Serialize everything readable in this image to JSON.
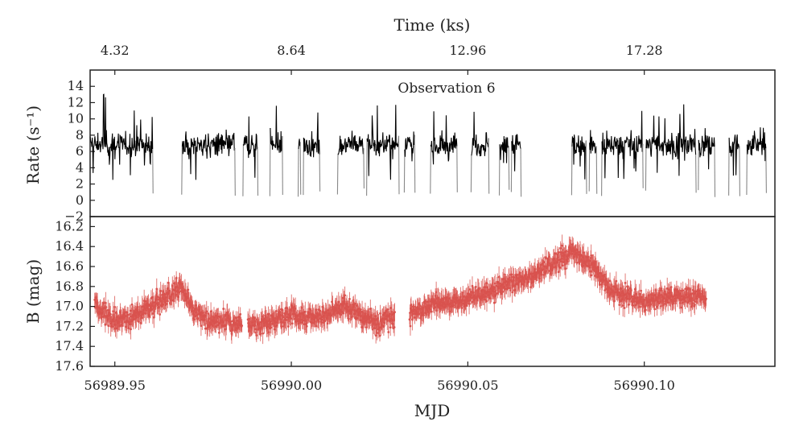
{
  "chart_data": [
    {
      "type": "line",
      "panel": "top",
      "title": "",
      "annotation": "Observation 6",
      "xlabel": "",
      "ylabel": "Rate (s⁻¹)",
      "top_axis_label": "Time (ks)",
      "top_ticks": [
        "4.32",
        "8.64",
        "12.96",
        "17.28"
      ],
      "top_tick_mjd": [
        56989.95,
        56990.0,
        56990.05,
        56990.1
      ],
      "xlim": [
        56989.943,
        56990.137
      ],
      "ylim": [
        -2,
        16
      ],
      "yticks": [
        "14",
        "12",
        "10",
        "8",
        "6",
        "4",
        "2",
        "0",
        "−2"
      ],
      "ytick_values": [
        14,
        12,
        10,
        8,
        6,
        4,
        2,
        0,
        -2
      ],
      "high_state_color": "#000000",
      "low_state_color": "#0000ee",
      "transition_color": "#888888",
      "threshold": 2.0,
      "high_level": 6.8,
      "low_level": 0.7,
      "low_segments": [
        [
          56989.9608,
          56989.969
        ],
        [
          56989.984,
          56989.986
        ],
        [
          56989.9905,
          56989.994
        ],
        [
          56989.9975,
          56990.002
        ],
        [
          56990.008,
          56990.0132
        ],
        [
          56990.0305,
          56990.032
        ],
        [
          56990.035,
          56990.0395
        ],
        [
          56990.047,
          56990.051
        ],
        [
          56990.056,
          56990.059
        ],
        [
          56990.065,
          56990.0795
        ],
        [
          56990.0865,
          56990.088
        ],
        [
          56990.12,
          56990.124
        ],
        [
          56990.127,
          56990.129
        ],
        [
          56990.1345,
          56990.137
        ]
      ],
      "dip_points": [
        56989.986,
        56990.003,
        56990.021,
        56990.062,
        56990.084,
        56990.1,
        56990.115
      ]
    },
    {
      "type": "scatter",
      "panel": "bottom",
      "with_error_bars": true,
      "xlabel": "MJD",
      "ylabel": "B (mag)",
      "y_inverted": true,
      "xlim": [
        56989.943,
        56990.137
      ],
      "ylim": [
        16.1,
        17.6
      ],
      "xticks": [
        "56989.95",
        "56990.00",
        "56990.05",
        "56990.10"
      ],
      "xtick_values": [
        56989.95,
        56990.0,
        56990.05,
        56990.1
      ],
      "yticks": [
        "16.2",
        "16.4",
        "16.6",
        "16.8",
        "17.0",
        "17.2",
        "17.4",
        "17.6"
      ],
      "ytick_values": [
        16.2,
        16.4,
        16.6,
        16.8,
        17.0,
        17.2,
        17.4,
        17.6
      ],
      "color": "#d9534f",
      "typical_error_mag": 0.08,
      "data_ranges": [
        [
          56989.9443,
          56989.986
        ],
        [
          56989.9877,
          56990.0293
        ],
        [
          56990.0335,
          56990.1175
        ]
      ],
      "trend_points": [
        [
          56989.9443,
          16.95
        ],
        [
          56989.946,
          17.05
        ],
        [
          56989.95,
          17.15
        ],
        [
          56989.955,
          17.1
        ],
        [
          56989.96,
          17.0
        ],
        [
          56989.965,
          16.9
        ],
        [
          56989.969,
          16.8
        ],
        [
          56989.972,
          17.05
        ],
        [
          56989.978,
          17.15
        ],
        [
          56989.986,
          17.18
        ],
        [
          56989.988,
          17.2
        ],
        [
          56989.995,
          17.15
        ],
        [
          56990.0,
          17.08
        ],
        [
          56990.005,
          17.12
        ],
        [
          56990.01,
          17.1
        ],
        [
          56990.015,
          17.0
        ],
        [
          56990.02,
          17.1
        ],
        [
          56990.025,
          17.18
        ],
        [
          56990.0293,
          17.1
        ],
        [
          56990.0335,
          17.1
        ],
        [
          56990.04,
          16.98
        ],
        [
          56990.05,
          16.92
        ],
        [
          56990.06,
          16.8
        ],
        [
          56990.068,
          16.7
        ],
        [
          56990.075,
          16.55
        ],
        [
          56990.08,
          16.45
        ],
        [
          56990.085,
          16.6
        ],
        [
          56990.09,
          16.82
        ],
        [
          56990.095,
          16.9
        ],
        [
          56990.1,
          16.95
        ],
        [
          56990.11,
          16.9
        ],
        [
          56990.1175,
          16.9
        ]
      ]
    }
  ]
}
